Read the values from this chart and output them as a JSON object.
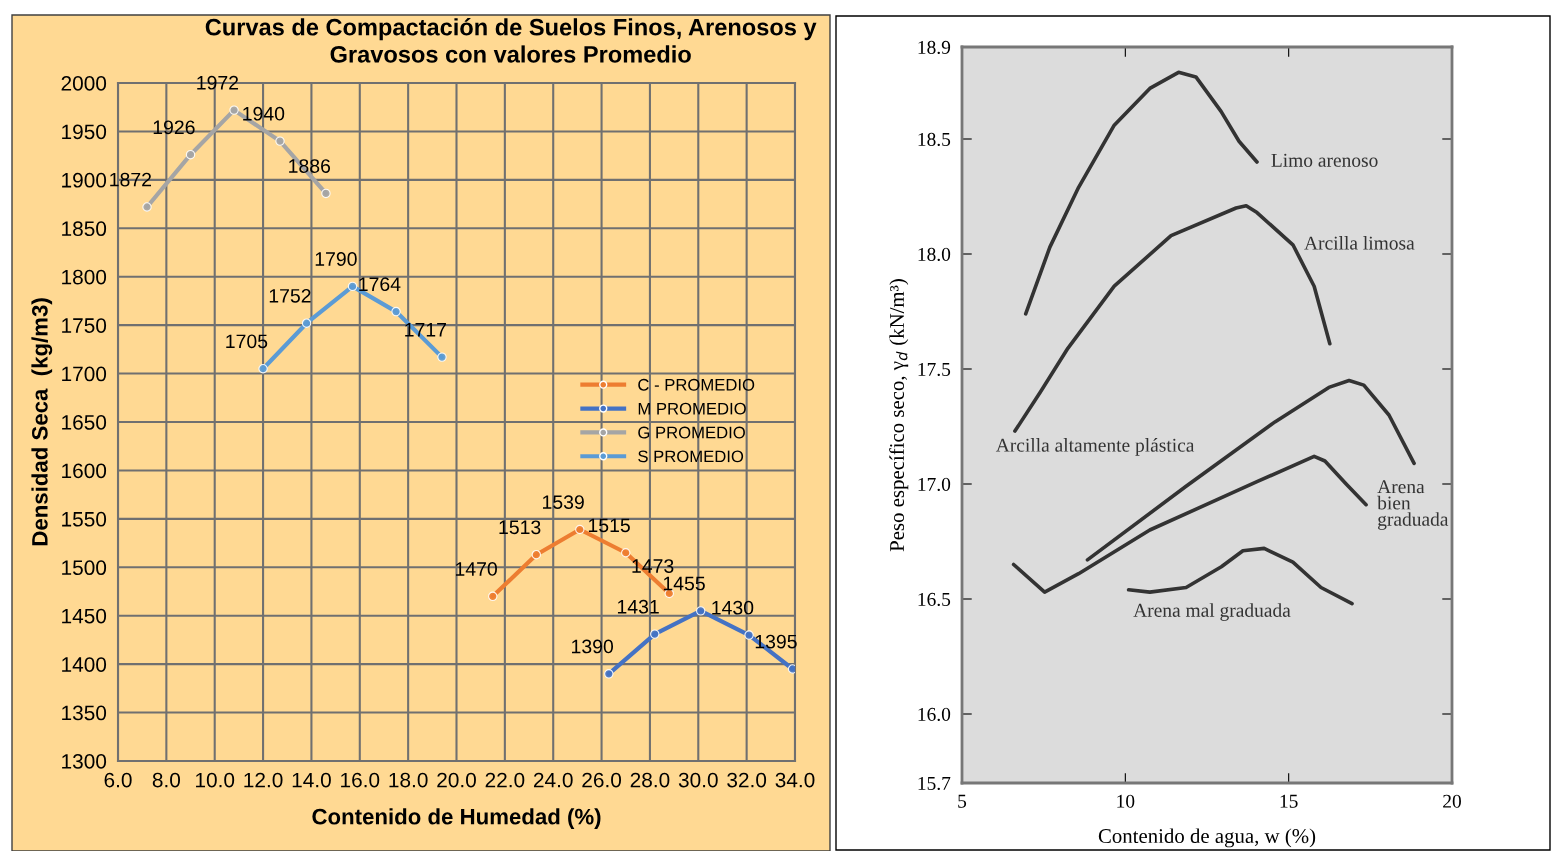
{
  "chart_data": [
    {
      "type": "line",
      "title": "Curvas de Compactación de Suelos Finos, Arenosos y Gravosos con valores Promedio",
      "xlabel": "Contenido de Humedad (%)",
      "ylabel": "Densidad Seca  (kg/m3)",
      "xlim": [
        6,
        34
      ],
      "xticks": [
        {
          "value": 6,
          "label": "6.0"
        },
        {
          "value": 8,
          "label": "8.0"
        },
        {
          "value": 10,
          "label": "10.0"
        },
        {
          "value": 12,
          "label": "12.0"
        },
        {
          "value": 14,
          "label": "14.0"
        },
        {
          "value": 16,
          "label": "16.0"
        },
        {
          "value": 18,
          "label": "18.0"
        },
        {
          "value": 20,
          "label": "20.0"
        },
        {
          "value": 22,
          "label": "22.0"
        },
        {
          "value": 24,
          "label": "24.0"
        },
        {
          "value": 26,
          "label": "26.0"
        },
        {
          "value": 28,
          "label": "28.0"
        },
        {
          "value": 30,
          "label": "30.0"
        },
        {
          "value": 32,
          "label": "32.0"
        },
        {
          "value": 34,
          "label": "34.0"
        }
      ],
      "ylim": [
        1300,
        2000
      ],
      "yticks": [
        1300,
        1350,
        1400,
        1450,
        1500,
        1550,
        1600,
        1650,
        1700,
        1750,
        1800,
        1850,
        1900,
        1950,
        2000
      ],
      "grid": true,
      "legend": "center right",
      "data_labels": true,
      "marker": "circle",
      "series": [
        {
          "name": "C - PROMEDIO",
          "color": "#ed7d31",
          "x": [
            21.5,
            23.3,
            25.1,
            27.0,
            28.8
          ],
          "values": [
            1470,
            1513,
            1539,
            1515,
            1473
          ]
        },
        {
          "name": "M PROMEDIO",
          "color": "#4472c4",
          "x": [
            26.3,
            28.2,
            30.1,
            32.1,
            33.9
          ],
          "values": [
            1390,
            1431,
            1455,
            1430,
            1395
          ]
        },
        {
          "name": "G PROMEDIO",
          "color": "#a5a5a5",
          "x": [
            7.2,
            9.0,
            10.8,
            12.7,
            14.6
          ],
          "values": [
            1872,
            1926,
            1972,
            1940,
            1886
          ]
        },
        {
          "name": "S PROMEDIO",
          "color": "#5b9bd5",
          "x": [
            12.0,
            13.8,
            15.7,
            17.5,
            19.4
          ],
          "values": [
            1705,
            1752,
            1790,
            1764,
            1717
          ]
        }
      ]
    },
    {
      "type": "line",
      "xlabel": "Contenido de agua, w (%)",
      "ylabel": "Peso específico seco, γ$_{d}$ (kN/m³)",
      "xlim": [
        5,
        20
      ],
      "xticks": [
        5,
        10,
        15,
        20
      ],
      "ylim": [
        15.7,
        18.9
      ],
      "yticks": [
        15.7,
        {
          "value": 16,
          "label": "16.0"
        },
        16.5,
        {
          "value": 17,
          "label": "17.0"
        },
        17.5,
        {
          "value": 18,
          "label": "18.0"
        },
        18.5,
        18.9
      ],
      "marker": "none",
      "series": [
        {
          "name": "Limo arenoso",
          "color": "#333333",
          "x": [
            6.95,
            7.69,
            8.57,
            9.66,
            10.75,
            11.63,
            12.16,
            12.93,
            13.48,
            14.03
          ],
          "values": [
            17.74,
            18.03,
            18.29,
            18.56,
            18.72,
            18.79,
            18.77,
            18.62,
            18.49,
            18.4
          ]
        },
        {
          "name": "Arcilla limosa",
          "color": "#333333",
          "x": [
            6.62,
            7.4,
            8.24,
            9.66,
            11.4,
            13.39,
            13.7,
            14.03,
            15.13,
            15.78,
            16.26
          ],
          "values": [
            17.23,
            17.4,
            17.59,
            17.86,
            18.08,
            18.2,
            18.21,
            18.18,
            18.04,
            17.86,
            17.61
          ]
        },
        {
          "name": "Arcilla altamente plástica",
          "color": "#333333",
          "x": [
            8.84,
            11.86,
            14.58,
            16.23,
            16.85,
            17.3,
            18.07,
            18.84
          ],
          "values": [
            16.67,
            16.99,
            17.27,
            17.42,
            17.45,
            17.43,
            17.3,
            17.09
          ]
        },
        {
          "name": "Arena bien graduada",
          "color": "#333333",
          "x": [
            6.58,
            7.53,
            8.57,
            10.75,
            14.03,
            15.78,
            16.11,
            16.76,
            17.37
          ],
          "values": [
            16.65,
            16.53,
            16.61,
            16.8,
            17.01,
            17.12,
            17.1,
            17.0,
            16.91
          ]
        },
        {
          "name": "Arena mal graduada",
          "color": "#333333",
          "x": [
            10.1,
            10.75,
            11.86,
            12.94,
            13.6,
            14.25,
            15.13,
            15.99,
            16.94
          ],
          "values": [
            16.54,
            16.53,
            16.55,
            16.64,
            16.71,
            16.72,
            16.66,
            16.55,
            16.48
          ]
        }
      ]
    }
  ]
}
